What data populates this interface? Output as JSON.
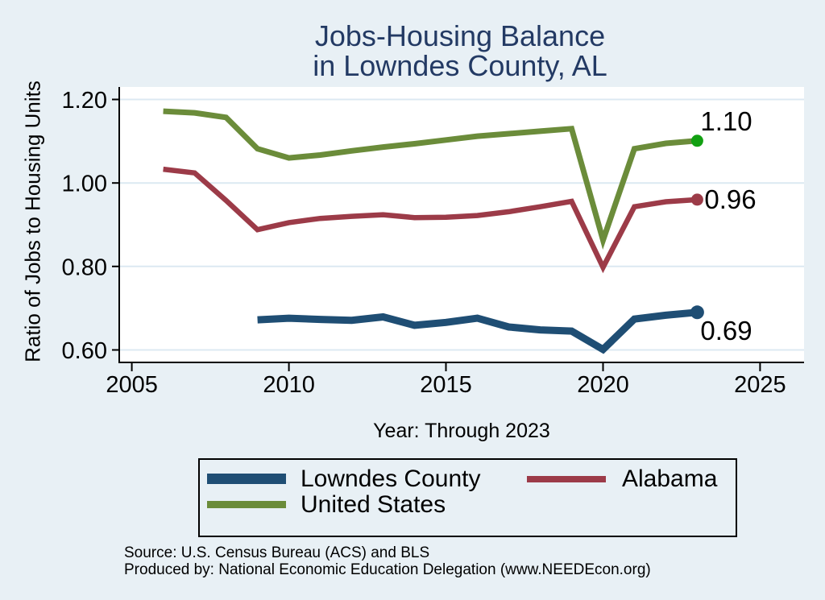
{
  "title": {
    "line1": "Jobs-Housing Balance",
    "line2": "in Lowndes County, AL"
  },
  "footer": {
    "line1": "Source: U.S. Census Bureau (ACS) and BLS",
    "line2": "Produced by: National Economic Education Delegation (www.NEEDEcon.org)"
  },
  "colors": {
    "background": "#E8F0F5",
    "plot_background": "#FFFFFF",
    "gridline": "#DCE9F2",
    "axis": "#000000",
    "title_text": "#233A64",
    "lowndes_county": "#1F4E74",
    "alabama": "#9C3B48",
    "united_states": "#6B8C3A",
    "united_states_end_dot": "#12A012"
  },
  "chart_data": {
    "type": "line",
    "title": "Jobs-Housing Balance in Lowndes County, AL",
    "xlabel": "Year: Through 2023",
    "ylabel": "Ratio of Jobs to Housing Units",
    "xlim": [
      2004.6,
      2026.4
    ],
    "ylim": [
      0.57,
      1.23
    ],
    "x_ticks": [
      2005,
      2010,
      2015,
      2020,
      2025
    ],
    "x_tick_labels": [
      "2005",
      "2010",
      "2015",
      "2020",
      "2025"
    ],
    "y_ticks": [
      0.6,
      0.8,
      1.0,
      1.2
    ],
    "y_tick_labels": [
      "0.60",
      "0.80",
      "1.00",
      "1.20"
    ],
    "grid": true,
    "legend_position": "bottom",
    "series": [
      {
        "name": "Lowndes County",
        "color": "#1F4E74",
        "line_width": 9,
        "x": [
          2009,
          2010,
          2011,
          2012,
          2013,
          2014,
          2015,
          2016,
          2017,
          2018,
          2019,
          2020,
          2021,
          2022,
          2023
        ],
        "values": [
          0.672,
          0.676,
          0.673,
          0.671,
          0.679,
          0.659,
          0.666,
          0.676,
          0.655,
          0.648,
          0.645,
          0.601,
          0.674,
          0.683,
          0.69
        ],
        "end_label": "0.69",
        "end_dot_color": "#1F4E74"
      },
      {
        "name": "Alabama",
        "color": "#9C3B48",
        "line_width": 6.5,
        "x": [
          2006,
          2007,
          2008,
          2009,
          2010,
          2011,
          2012,
          2013,
          2014,
          2015,
          2016,
          2017,
          2018,
          2019,
          2020,
          2021,
          2022,
          2023
        ],
        "values": [
          1.033,
          1.024,
          0.958,
          0.888,
          0.905,
          0.915,
          0.92,
          0.924,
          0.917,
          0.918,
          0.922,
          0.931,
          0.943,
          0.956,
          0.798,
          0.943,
          0.955,
          0.96
        ],
        "end_label": "0.96",
        "end_dot_color": "#9C3B48"
      },
      {
        "name": "United States",
        "color": "#6B8C3A",
        "line_width": 7,
        "x": [
          2006,
          2007,
          2008,
          2009,
          2010,
          2011,
          2012,
          2013,
          2014,
          2015,
          2016,
          2017,
          2018,
          2019,
          2020,
          2021,
          2022,
          2023
        ],
        "values": [
          1.172,
          1.168,
          1.157,
          1.082,
          1.06,
          1.067,
          1.077,
          1.086,
          1.094,
          1.103,
          1.112,
          1.118,
          1.124,
          1.13,
          0.863,
          1.082,
          1.095,
          1.101
        ],
        "end_label": "1.10",
        "end_dot_color": "#12A012"
      }
    ]
  }
}
